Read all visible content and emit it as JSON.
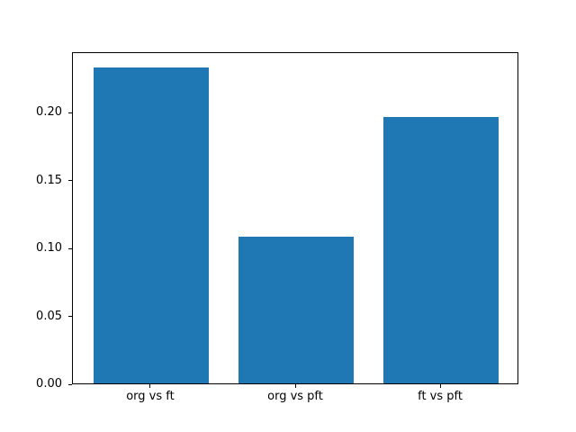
{
  "chart_data": {
    "type": "bar",
    "title": "",
    "categories": [
      "org vs ft",
      "org vs pft",
      "ft vs pft"
    ],
    "values": [
      0.233,
      0.108,
      0.196
    ],
    "series_name": "",
    "xlabel": "",
    "ylabel": "",
    "ytick_labels": [
      "0.00",
      "0.05",
      "0.10",
      "0.15",
      "0.20"
    ],
    "ytick_values": [
      0.0,
      0.05,
      0.1,
      0.15,
      0.2
    ],
    "ylim": [
      0,
      0.2447
    ],
    "xlim": [
      -0.54,
      2.54
    ],
    "bar_width": 0.8,
    "grid": false,
    "legend_position": "none",
    "bar_color": "#1f77b4",
    "frame_color": "#000000",
    "background_color": "#ffffff"
  }
}
